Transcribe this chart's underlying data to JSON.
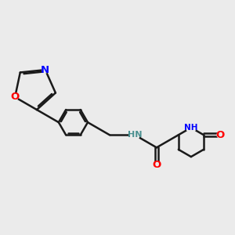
{
  "bg": "#ebebeb",
  "bond_color": "#1a1a1a",
  "bond_lw": 1.8,
  "atom_colors": {
    "N": "#0000ff",
    "O": "#ff0000",
    "NH_amide": "#4a9090",
    "NH_pip": "#0000ff"
  },
  "font_size": 8.5,
  "figsize": [
    3.0,
    3.0
  ],
  "dpi": 100
}
